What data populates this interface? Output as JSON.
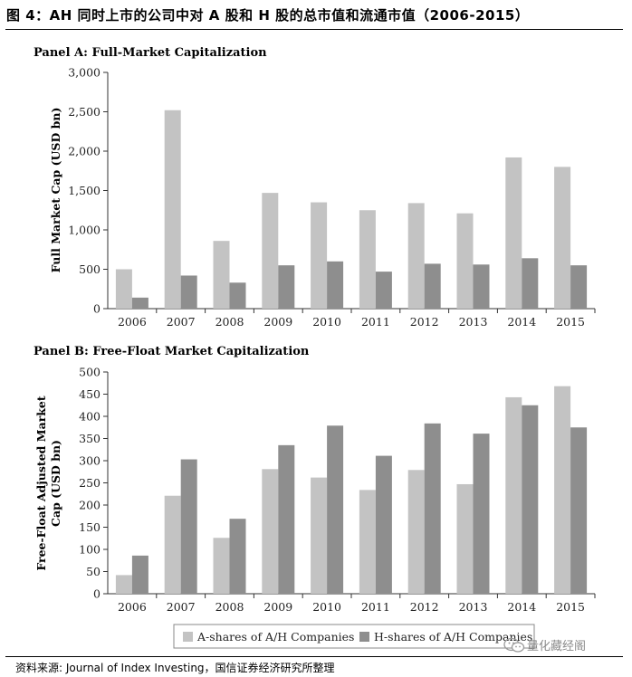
{
  "figure_title": "图 4：AH 同时上市的公司中对 A 股和 H 股的总市值和流通市值（2006-2015）",
  "source_text": "资料来源: Journal of Index Investing，国信证券经济研究所整理",
  "watermark_text": "量化藏经阁",
  "colors": {
    "series_a": "#c3c3c3",
    "series_h": "#8e8e8e",
    "axis": "#333333"
  },
  "chart_data": [
    {
      "type": "bar",
      "title": "Panel A: Full-Market Capitalization",
      "xlabel": "",
      "ylabel": "Full Market Cap (USD bn)",
      "categories": [
        "2006",
        "2007",
        "2008",
        "2009",
        "2010",
        "2011",
        "2012",
        "2013",
        "2014",
        "2015"
      ],
      "ylim": [
        0,
        3000
      ],
      "yticks": [
        0,
        500,
        1000,
        1500,
        2000,
        2500,
        3000
      ],
      "ytick_labels": [
        "0",
        "500",
        "1,000",
        "1,500",
        "2,000",
        "2,500",
        "3,000"
      ],
      "series": [
        {
          "name": "A-shares of A/H Companies",
          "values": [
            500,
            2520,
            860,
            1470,
            1350,
            1250,
            1340,
            1210,
            1920,
            1800
          ]
        },
        {
          "name": "H-shares of A/H Companies",
          "values": [
            140,
            420,
            330,
            550,
            600,
            470,
            570,
            560,
            640,
            550
          ]
        }
      ]
    },
    {
      "type": "bar",
      "title": "Panel B: Free-Float Market Capitalization",
      "xlabel": "",
      "ylabel": "Free-Float Adjusted Market Cap (USD bn)",
      "ylabel_lines": [
        "Free-Float Adjusted Market",
        "Cap (USD bn)"
      ],
      "categories": [
        "2006",
        "2007",
        "2008",
        "2009",
        "2010",
        "2011",
        "2012",
        "2013",
        "2014",
        "2015"
      ],
      "ylim": [
        0,
        500
      ],
      "yticks": [
        0,
        50,
        100,
        150,
        200,
        250,
        300,
        350,
        400,
        450,
        500
      ],
      "ytick_labels": [
        "0",
        "50",
        "100",
        "150",
        "200",
        "250",
        "300",
        "350",
        "400",
        "450",
        "500"
      ],
      "legend": "bottom",
      "series": [
        {
          "name": "A-shares of A/H Companies",
          "values": [
            42,
            221,
            126,
            281,
            262,
            234,
            279,
            247,
            443,
            468
          ]
        },
        {
          "name": "H-shares of A/H Companies",
          "values": [
            86,
            303,
            169,
            335,
            379,
            311,
            384,
            361,
            425,
            375
          ]
        }
      ]
    }
  ]
}
